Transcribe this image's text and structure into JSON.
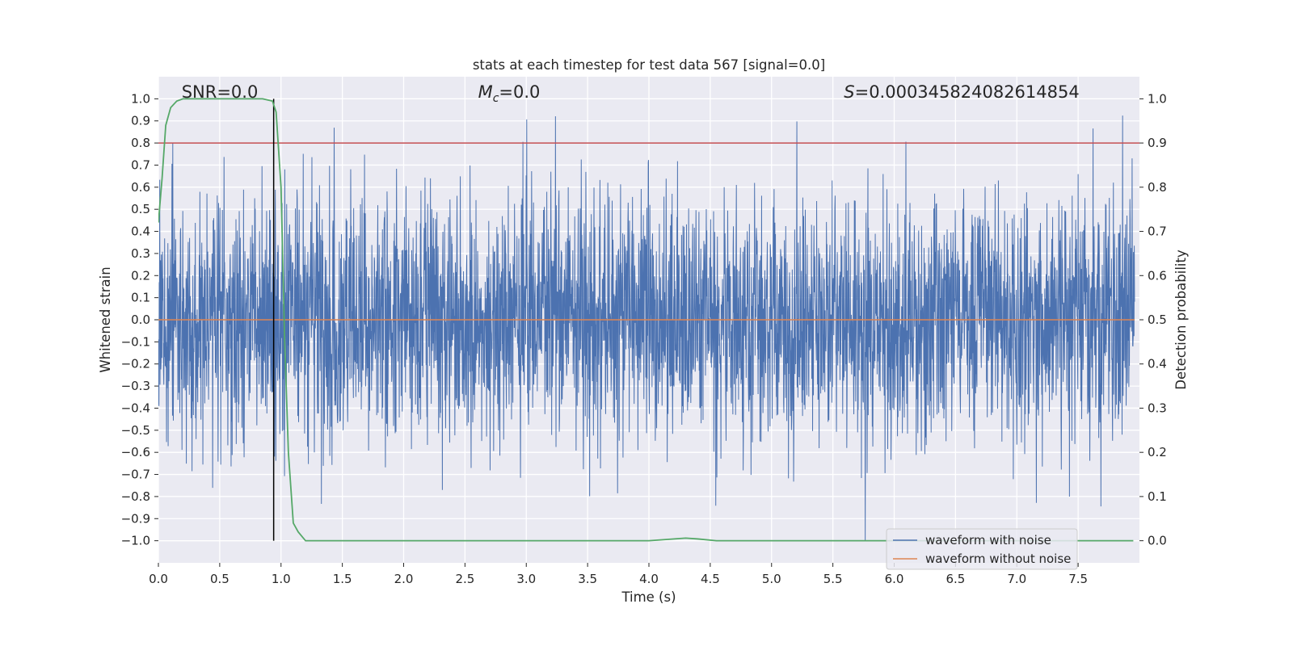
{
  "chart_data": {
    "type": "line",
    "title": "stats at each timestep for test data 567 [signal=0.0]",
    "xlabel": "Time (s)",
    "ylabel": "Whitened strain",
    "y2label": "Detection probability",
    "xlim": [
      0.0,
      8.0
    ],
    "ylim": [
      -1.1,
      1.1
    ],
    "y2lim": [
      -0.05,
      1.05
    ],
    "xticks": [
      0.0,
      0.5,
      1.0,
      1.5,
      2.0,
      2.5,
      3.0,
      3.5,
      4.0,
      4.5,
      5.0,
      5.5,
      6.0,
      6.5,
      7.0,
      7.5
    ],
    "yticks": [
      -1.0,
      -0.9,
      -0.8,
      -0.7,
      -0.6,
      -0.5,
      -0.4,
      -0.3,
      -0.2,
      -0.1,
      0.0,
      0.1,
      0.2,
      0.3,
      0.4,
      0.5,
      0.6,
      0.7,
      0.8,
      0.9,
      1.0
    ],
    "y2ticks": [
      0.0,
      0.1,
      0.2,
      0.3,
      0.4,
      0.5,
      0.6,
      0.7,
      0.8,
      0.9,
      1.0
    ],
    "xtick_labels": [
      "0.0",
      "0.5",
      "1.0",
      "1.5",
      "2.0",
      "2.5",
      "3.0",
      "3.5",
      "4.0",
      "4.5",
      "5.0",
      "5.5",
      "6.0",
      "6.5",
      "7.0",
      "7.5"
    ],
    "ytick_labels": [
      "−1.0",
      "−0.9",
      "−0.8",
      "−0.7",
      "−0.6",
      "−0.5",
      "−0.4",
      "−0.3",
      "−0.2",
      "−0.1",
      "0.0",
      "0.1",
      "0.2",
      "0.3",
      "0.4",
      "0.5",
      "0.6",
      "0.7",
      "0.8",
      "0.9",
      "1.0"
    ],
    "y2tick_labels": [
      "0.0",
      "0.1",
      "0.2",
      "0.3",
      "0.4",
      "0.5",
      "0.6",
      "0.7",
      "0.8",
      "0.9",
      "1.0"
    ],
    "annotations": {
      "snr": "SNR=0.0",
      "mc_symbol": "M",
      "mc_sub": "c",
      "mc_value": "=0.0",
      "s_symbol": "S",
      "s_value": "=0.000345824082614854"
    },
    "legend": {
      "location": "lower right",
      "entries": [
        "waveform with noise",
        "waveform without noise"
      ]
    },
    "threshold": {
      "axis": "y2",
      "value": 0.9,
      "color": "#c44e52"
    },
    "marker_line": {
      "x": 0.94,
      "y_from": -1.0,
      "y_to": 1.0,
      "color": "#000000"
    },
    "series": [
      {
        "name": "waveform with noise",
        "color": "#4c72b0",
        "axis": "y",
        "kind": "dense noise, |value| up to 1.0",
        "x_range": [
          0.0,
          8.0
        ],
        "noise_std": 0.27,
        "clip": [
          -1.0,
          1.0
        ]
      },
      {
        "name": "waveform without noise",
        "color": "#dd8452",
        "axis": "y",
        "x": [
          0.0,
          8.0
        ],
        "y": [
          0.0,
          0.0
        ]
      },
      {
        "name": "detection probability",
        "color": "#55a868",
        "axis": "y2",
        "x": [
          0.0,
          0.03,
          0.06,
          0.1,
          0.15,
          0.2,
          0.3,
          0.5,
          0.7,
          0.85,
          0.93,
          0.96,
          1.0,
          1.03,
          1.06,
          1.1,
          1.14,
          1.2,
          1.5,
          2.0,
          3.0,
          3.5,
          4.0,
          4.15,
          4.3,
          4.4,
          4.55,
          5.0,
          6.0,
          7.0,
          7.95
        ],
        "y": [
          0.72,
          0.82,
          0.94,
          0.98,
          0.995,
          1.0,
          1.0,
          1.0,
          1.0,
          1.0,
          0.995,
          0.97,
          0.8,
          0.45,
          0.2,
          0.04,
          0.02,
          0.0,
          0.0,
          0.0,
          0.0,
          0.0,
          0.0,
          0.003,
          0.006,
          0.004,
          0.0,
          0.0,
          0.0,
          0.0,
          0.0
        ]
      }
    ]
  }
}
